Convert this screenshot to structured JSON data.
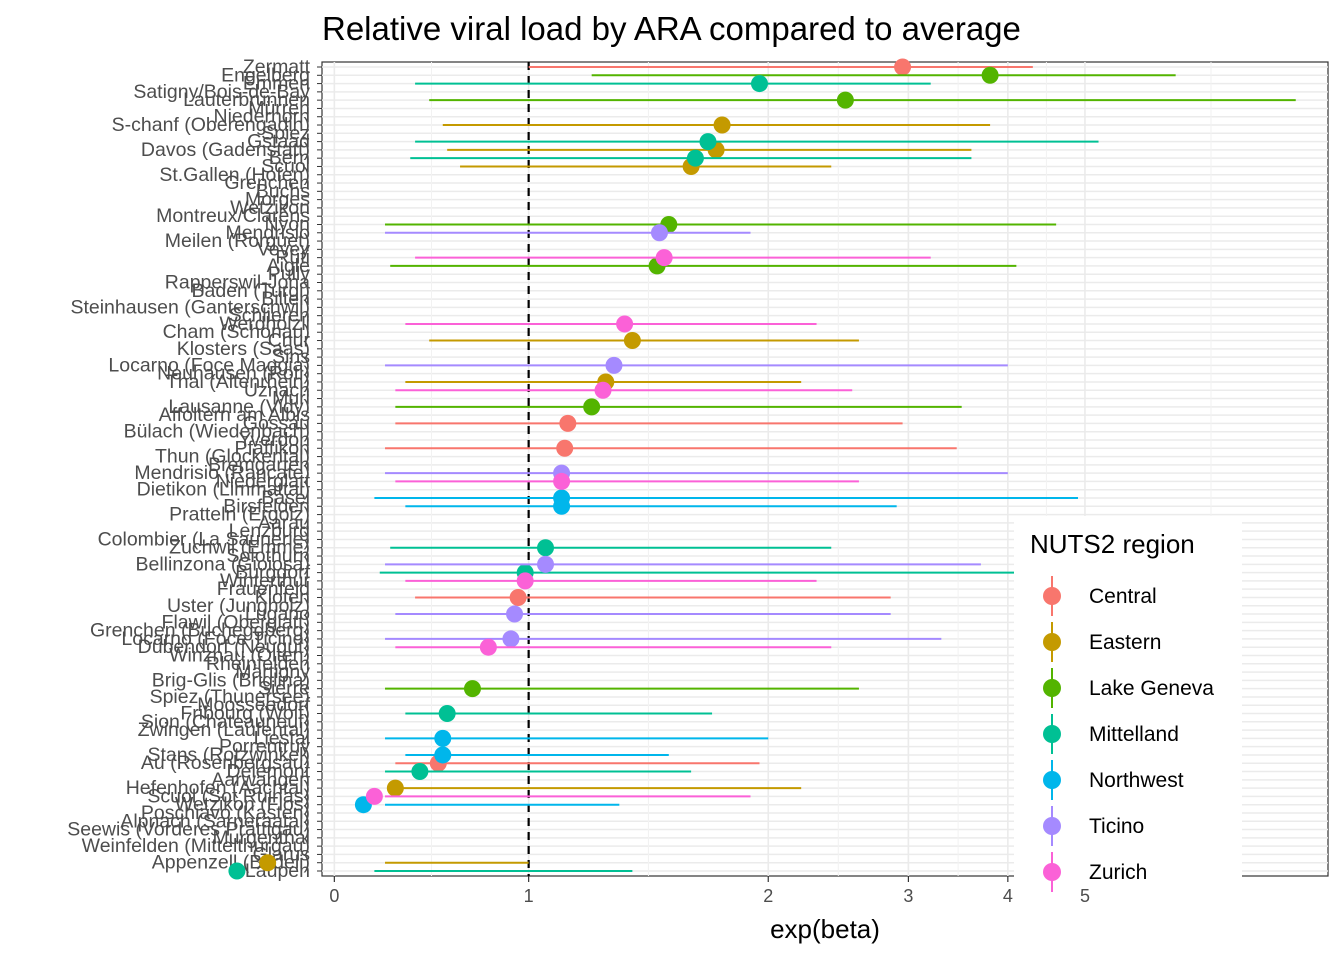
{
  "chart_data": {
    "type": "point-range",
    "title": "Relative viral load by ARA compared to average",
    "xlabel": "exp(beta)",
    "ylabel": "",
    "x_scale": "log",
    "xlim": [
      0.55,
      10.1
    ],
    "x_ticks": [
      {
        "value": 0.57,
        "label": "0"
      },
      {
        "value": 1,
        "label": "1"
      },
      {
        "value": 2,
        "label": "2"
      },
      {
        "value": 3,
        "label": "3"
      },
      {
        "value": 4,
        "label": "4"
      },
      {
        "value": 5,
        "label": "5"
      }
    ],
    "reference_line": {
      "x": 1,
      "style": "dashed"
    },
    "legend": {
      "title": "NUTS2 region",
      "position": "right",
      "entries": [
        {
          "name": "Central",
          "color": "#F8766D"
        },
        {
          "name": "Eastern",
          "color": "#C49A00"
        },
        {
          "name": "Lake Geneva",
          "color": "#53B400"
        },
        {
          "name": "Mittelland",
          "color": "#00C094"
        },
        {
          "name": "Northwest",
          "color": "#00B6EB"
        },
        {
          "name": "Ticino",
          "color": "#A58AFF"
        },
        {
          "name": "Zurich",
          "color": "#FB61D7"
        }
      ]
    },
    "categories": [
      "Zermatt",
      "Engelberg",
      "Emmen",
      "Satigny/Bois-de-Bay",
      "Lauterbrunnen",
      "Mürren",
      "Niederhorn",
      "S-chanf (Oberengadin)",
      "Spiez",
      "Gstaad",
      "Davos (Gadenstatt)",
      "Bern",
      "Scuol",
      "St.Gallen (Hofen)",
      "Grenchen",
      "Buchs",
      "Morges",
      "Wetzikon",
      "Montreux/Clarens",
      "Nyon",
      "Mendrisio",
      "Meilen (Rorguet)",
      "Vevey",
      "Rüti",
      "Aigle",
      "Pully",
      "Rapperswil-Jona",
      "Baden (Turgi)",
      "Bilten",
      "Steinhausen (Ganterschwil)",
      "Schlieren",
      "Werdhölzli",
      "Cham (Schönau)",
      "Chur",
      "Klosters (Saas)",
      "Sins",
      "Locarno (Foce Maggia)",
      "Neuhausen (Röti)",
      "Thal (Altenrhein)",
      "Uznach",
      "Muri",
      "Lausanne (Vidy)",
      "Affoltern am Albis",
      "Gossau",
      "Bülach (Wiedenbach)",
      "Yverdon",
      "Pfäffikon",
      "Thun (Glockental)",
      "Bremgarten",
      "Mendrisio (Rancate)",
      "Niederglatt",
      "Dietikon (Limmattal)",
      "Basel",
      "Birsfelden",
      "Pratteln (Ergolz)",
      "Aarau",
      "Lenzburg",
      "Colombier (La Saunerie)",
      "Zuchwil (Emme)",
      "Solothurn",
      "Bellinzona (Gioiosa)",
      "Burgdorf",
      "Winterthur",
      "Frauenfeld",
      "Kloten",
      "Uster (Jungholz)",
      "Lugano",
      "Flawil (Oberglatt)",
      "Grenchen (Bucheggberg)",
      "Locarno (Foce Ticino)",
      "Dübendorf (Neugut)",
      "Winznau (Olten)",
      "Rheinfelden",
      "Martigny",
      "Brig-Glis (Briglina)",
      "Sierre",
      "Spiez (Thunersee)",
      "Moosseedorf",
      "Fribourg (Wolf)",
      "Sion (Chateauneuf)",
      "Zwingen (Laufental)",
      "Liestal",
      "Porrentruy",
      "Stans (Rotzwinkel)",
      "Au (Rosenbergsau)",
      "Delémont",
      "Aarwangen",
      "Hefenhofen (Aachtal)",
      "Scuol (Sot Ruinas)",
      "Wetzikon (Flos)",
      "Poschiavo (Kasten)",
      "Alpnach (Sarneraatal)",
      "Seewis (Vorderes Prättigau)",
      "Murgenthal",
      "Weinfelden (Mittelthurgau)",
      "Glarus",
      "Appenzell (Bödeli)",
      "Laupen"
    ],
    "series": [
      {
        "name": "Central",
        "points": [
          {
            "category": "Zermatt",
            "estimate": 2.95,
            "lower": 1.0,
            "upper": 4.3
          },
          {
            "category": "Gossau",
            "estimate": 1.12,
            "lower": 0.68,
            "upper": 2.95
          },
          {
            "category": "Pfäffikon",
            "estimate": 1.11,
            "lower": 0.66,
            "upper": 3.45
          },
          {
            "category": "Kloten",
            "estimate": 0.97,
            "lower": 0.72,
            "upper": 2.85
          },
          {
            "category": "Au (Rosenbergsau)",
            "estimate": 0.77,
            "lower": 0.68,
            "upper": 1.95
          }
        ]
      },
      {
        "name": "Eastern",
        "points": [
          {
            "category": "S-chanf (Oberengadin)",
            "estimate": 1.75,
            "lower": 0.78,
            "upper": 3.8
          },
          {
            "category": "Davos (Gadenstatt)",
            "estimate": 1.72,
            "lower": 0.79,
            "upper": 3.6
          },
          {
            "category": "Scuol",
            "estimate": 1.6,
            "lower": 0.82,
            "upper": 2.4
          },
          {
            "category": "Chur",
            "estimate": 1.35,
            "lower": 0.75,
            "upper": 2.6
          },
          {
            "category": "Thal (Altenrhein)",
            "estimate": 1.25,
            "lower": 0.7,
            "upper": 2.2
          },
          {
            "category": "Hefenhofen (Aachtal)",
            "estimate": 0.68,
            "lower": 0.67,
            "upper": 2.2
          },
          {
            "category": "Appenzell (Bödeli)",
            "estimate": 0.47,
            "lower": 0.66,
            "upper": 1.0
          }
        ]
      },
      {
        "name": "Lake Geneva",
        "points": [
          {
            "category": "Engelberg",
            "estimate": 3.8,
            "lower": 1.2,
            "upper": 6.5
          },
          {
            "category": "Lauterbrunnen",
            "estimate": 2.5,
            "lower": 0.75,
            "upper": 9.2
          },
          {
            "category": "Nyon",
            "estimate": 1.5,
            "lower": 0.66,
            "upper": 4.6
          },
          {
            "category": "Aigle",
            "estimate": 1.45,
            "lower": 0.67,
            "upper": 4.1
          },
          {
            "category": "Lausanne (Vidy)",
            "estimate": 1.2,
            "lower": 0.68,
            "upper": 3.5
          },
          {
            "category": "Sierre",
            "estimate": 0.85,
            "lower": 0.66,
            "upper": 2.6
          }
        ]
      },
      {
        "name": "Mittelland",
        "points": [
          {
            "category": "Emmen",
            "estimate": 1.95,
            "lower": 0.72,
            "upper": 3.2
          },
          {
            "category": "Gstaad",
            "estimate": 1.68,
            "lower": 0.72,
            "upper": 5.2
          },
          {
            "category": "Bern",
            "estimate": 1.62,
            "lower": 0.71,
            "upper": 3.6
          },
          {
            "category": "Zuchwil (Emme)",
            "estimate": 1.05,
            "lower": 0.67,
            "upper": 2.4
          },
          {
            "category": "Burgdorf",
            "estimate": 0.99,
            "lower": 0.65,
            "upper": 6.0
          },
          {
            "category": "Fribourg (Wolf)",
            "estimate": 0.79,
            "lower": 0.7,
            "upper": 1.7
          },
          {
            "category": "Delémont",
            "estimate": 0.73,
            "lower": 0.66,
            "upper": 1.6
          },
          {
            "category": "Laupen",
            "estimate": 0.43,
            "lower": 0.64,
            "upper": 1.35
          }
        ]
      },
      {
        "name": "Northwest",
        "points": [
          {
            "category": "Basel",
            "estimate": 1.1,
            "lower": 0.64,
            "upper": 4.9
          },
          {
            "category": "Birsfelden",
            "estimate": 1.1,
            "lower": 0.7,
            "upper": 2.9
          },
          {
            "category": "Liestal",
            "estimate": 0.78,
            "lower": 0.66,
            "upper": 2.0
          },
          {
            "category": "Stans (Rotzwinkel)",
            "estimate": 0.78,
            "lower": 0.7,
            "upper": 1.5
          },
          {
            "category": "Wetzikon (Flos)",
            "estimate": 0.62,
            "lower": 0.66,
            "upper": 1.3
          }
        ]
      },
      {
        "name": "Ticino",
        "points": [
          {
            "category": "Mendrisio",
            "estimate": 1.46,
            "lower": 0.66,
            "upper": 1.9
          },
          {
            "category": "Locarno (Foce Maggia)",
            "estimate": 1.28,
            "lower": 0.66,
            "upper": 4.0
          },
          {
            "category": "Mendrisio (Rancate)",
            "estimate": 1.1,
            "lower": 0.66,
            "upper": 4.0
          },
          {
            "category": "Bellinzona (Gioiosa)",
            "estimate": 1.05,
            "lower": 0.66,
            "upper": 3.7
          },
          {
            "category": "Lugano",
            "estimate": 0.96,
            "lower": 0.68,
            "upper": 2.85
          },
          {
            "category": "Locarno (Foce Ticino)",
            "estimate": 0.95,
            "lower": 0.66,
            "upper": 3.3
          }
        ]
      },
      {
        "name": "Zurich",
        "points": [
          {
            "category": "Rüti",
            "estimate": 1.48,
            "lower": 0.72,
            "upper": 3.2
          },
          {
            "category": "Werdhölzli",
            "estimate": 1.32,
            "lower": 0.7,
            "upper": 2.3
          },
          {
            "category": "Uznach",
            "estimate": 1.24,
            "lower": 0.68,
            "upper": 2.55
          },
          {
            "category": "Niederglatt",
            "estimate": 1.1,
            "lower": 0.68,
            "upper": 2.6
          },
          {
            "category": "Winterthur",
            "estimate": 0.99,
            "lower": 0.7,
            "upper": 2.3
          },
          {
            "category": "Dübendorf (Neugut)",
            "estimate": 0.89,
            "lower": 0.68,
            "upper": 2.4
          },
          {
            "category": "Scuol (Sot Ruinas)",
            "estimate": 0.64,
            "lower": 0.66,
            "upper": 1.9
          }
        ]
      }
    ]
  }
}
